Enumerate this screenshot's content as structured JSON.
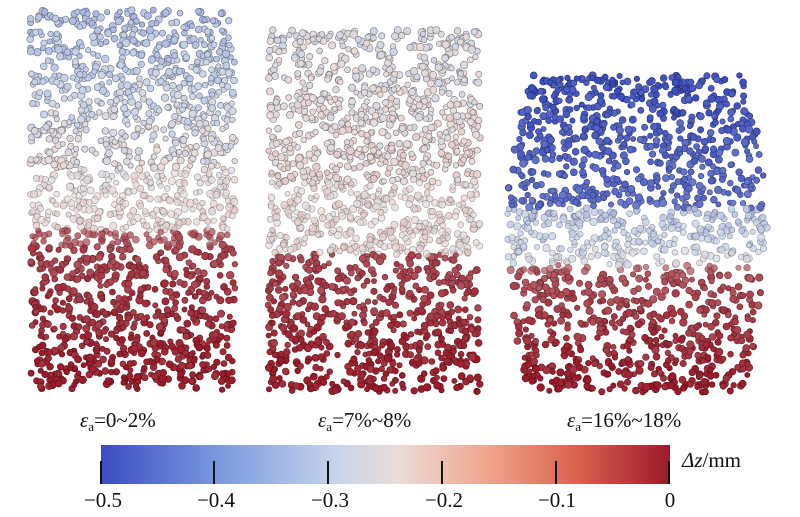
{
  "specimens": [
    {
      "strain_symbol": "ε",
      "strain_sub": "a",
      "strain_range": "=0~2%"
    },
    {
      "strain_symbol": "ε",
      "strain_sub": "a",
      "strain_range": "=7%~8%"
    },
    {
      "strain_symbol": "ε",
      "strain_sub": "a",
      "strain_range": "=16%~18%"
    }
  ],
  "colorbar": {
    "variable": "Δz",
    "unit": "/mm",
    "ticks": [
      "−0.5",
      "−0.4",
      "−0.3",
      "−0.2",
      "−0.1",
      "0"
    ],
    "range": [
      -0.5,
      0
    ],
    "colors": [
      "#3b4cc0",
      "#c9d5ea",
      "#ebdcd9",
      "#9c1a2a"
    ]
  }
}
